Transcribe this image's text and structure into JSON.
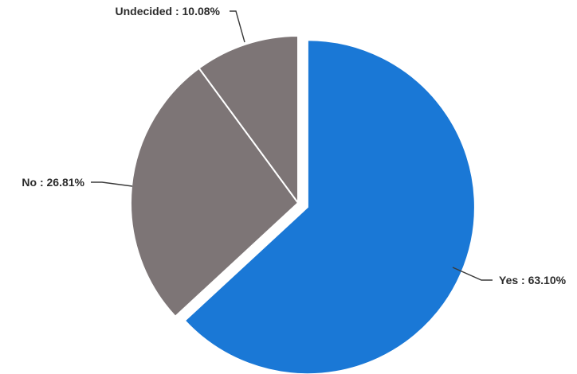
{
  "chart_data": {
    "type": "pie",
    "title": "",
    "slices": [
      {
        "label": "Yes",
        "value": 63.1,
        "display": "Yes : 63.10%",
        "color": "#1a78d6",
        "exploded": true
      },
      {
        "label": "No",
        "value": 26.81,
        "display": "No : 26.81%",
        "color": "#7d7576",
        "exploded": false
      },
      {
        "label": "Undecided",
        "value": 10.08,
        "display": "Undecided : 10.08%",
        "color": "#7d7576",
        "exploded": false
      }
    ],
    "legend": "none",
    "labels": "outside with leader lines"
  }
}
